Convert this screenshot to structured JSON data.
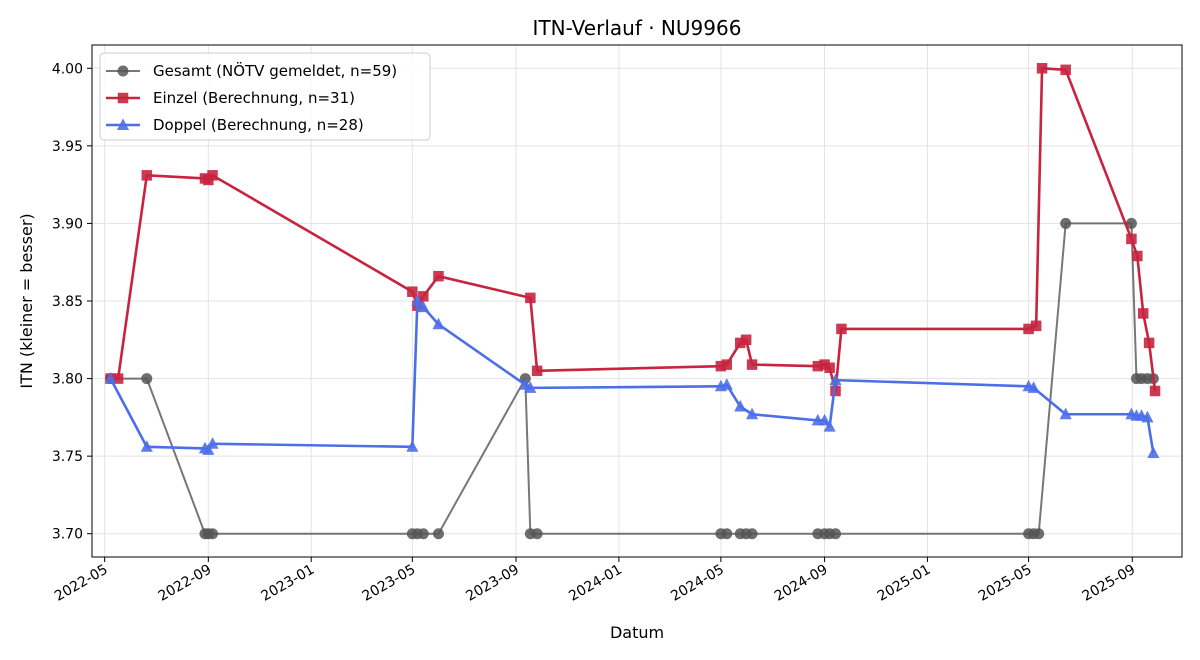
{
  "chart_data": {
    "type": "line",
    "title": "ITN-Verlauf · NU9966",
    "xlabel": "Datum",
    "ylabel": "ITN  (kleiner = besser)",
    "xlim": [
      "2022-04-16",
      "2025-10-30"
    ],
    "ylim": [
      3.685,
      4.015
    ],
    "x_ticks": [
      "2022-05-01",
      "2022-09-01",
      "2023-01-01",
      "2023-05-01",
      "2023-09-01",
      "2024-01-01",
      "2024-05-01",
      "2024-09-01",
      "2025-01-01",
      "2025-05-01",
      "2025-09-01"
    ],
    "x_tick_labels": [
      "2022-05",
      "2022-09",
      "2023-01",
      "2023-05",
      "2023-09",
      "2024-01",
      "2024-05",
      "2024-09",
      "2025-01",
      "2025-05",
      "2025-09"
    ],
    "y_ticks": [
      3.7,
      3.75,
      3.8,
      3.85,
      3.9,
      3.95,
      4.0
    ],
    "y_tick_labels": [
      "3.70",
      "3.75",
      "3.80",
      "3.85",
      "3.90",
      "3.95",
      "4.00"
    ],
    "grid": true,
    "legend": "upper-left",
    "series": [
      {
        "name": "Gesamt (NÖTV gemeldet, n=59)",
        "color": "#555555",
        "marker": "circle",
        "x": [
          "2022-05-08",
          "2022-06-20",
          "2022-08-28",
          "2022-09-01",
          "2022-09-06",
          "2023-05-01",
          "2023-05-07",
          "2023-05-14",
          "2023-06-01",
          "2023-09-12",
          "2023-09-18",
          "2023-09-26",
          "2024-05-01",
          "2024-05-08",
          "2024-05-24",
          "2024-05-31",
          "2024-06-07",
          "2024-08-24",
          "2024-09-01",
          "2024-09-07",
          "2024-09-14",
          "2025-05-01",
          "2025-05-07",
          "2025-05-13",
          "2025-06-14",
          "2025-08-31",
          "2025-09-06",
          "2025-09-12",
          "2025-09-19",
          "2025-09-26"
        ],
        "values": [
          3.8,
          3.8,
          3.7,
          3.7,
          3.7,
          3.7,
          3.7,
          3.7,
          3.7,
          3.8,
          3.7,
          3.7,
          3.7,
          3.7,
          3.7,
          3.7,
          3.7,
          3.7,
          3.7,
          3.7,
          3.7,
          3.7,
          3.7,
          3.7,
          3.9,
          3.9,
          3.8,
          3.8,
          3.8,
          3.8
        ]
      },
      {
        "name": "Einzel (Berechnung, n=31)",
        "color": "#c8233f",
        "marker": "square",
        "x": [
          "2022-05-08",
          "2022-05-17",
          "2022-06-20",
          "2022-08-28",
          "2022-09-01",
          "2022-09-06",
          "2023-05-01",
          "2023-05-07",
          "2023-05-14",
          "2023-06-01",
          "2023-09-18",
          "2023-09-26",
          "2024-05-01",
          "2024-05-08",
          "2024-05-24",
          "2024-05-31",
          "2024-06-07",
          "2024-08-24",
          "2024-09-01",
          "2024-09-07",
          "2024-09-14",
          "2024-09-21",
          "2025-05-01",
          "2025-05-10",
          "2025-05-17",
          "2025-06-14",
          "2025-08-31",
          "2025-09-07",
          "2025-09-14",
          "2025-09-21",
          "2025-09-28"
        ],
        "values": [
          3.8,
          3.8,
          3.931,
          3.929,
          3.928,
          3.931,
          3.856,
          3.847,
          3.853,
          3.866,
          3.852,
          3.805,
          3.808,
          3.809,
          3.823,
          3.825,
          3.809,
          3.808,
          3.809,
          3.807,
          3.792,
          3.832,
          3.832,
          3.834,
          4.0,
          3.999,
          3.89,
          3.879,
          3.842,
          3.823,
          3.792
        ]
      },
      {
        "name": "Doppel (Berechnung, n=28)",
        "color": "#4c6fe8",
        "marker": "triangle",
        "x": [
          "2022-05-08",
          "2022-06-20",
          "2022-08-28",
          "2022-09-01",
          "2022-09-06",
          "2023-05-01",
          "2023-05-07",
          "2023-05-14",
          "2023-06-01",
          "2023-09-12",
          "2023-09-18",
          "2024-05-01",
          "2024-05-08",
          "2024-05-24",
          "2024-06-07",
          "2024-08-24",
          "2024-09-01",
          "2024-09-07",
          "2024-09-14",
          "2025-05-01",
          "2025-05-07",
          "2025-06-14",
          "2025-08-31",
          "2025-09-06",
          "2025-09-12",
          "2025-09-19",
          "2025-09-26"
        ],
        "values": [
          3.8,
          3.756,
          3.755,
          3.754,
          3.758,
          3.756,
          3.85,
          3.846,
          3.835,
          3.796,
          3.794,
          3.795,
          3.796,
          3.782,
          3.777,
          3.773,
          3.773,
          3.769,
          3.799,
          3.795,
          3.794,
          3.777,
          3.777,
          3.776,
          3.776,
          3.775,
          3.752
        ]
      }
    ]
  }
}
